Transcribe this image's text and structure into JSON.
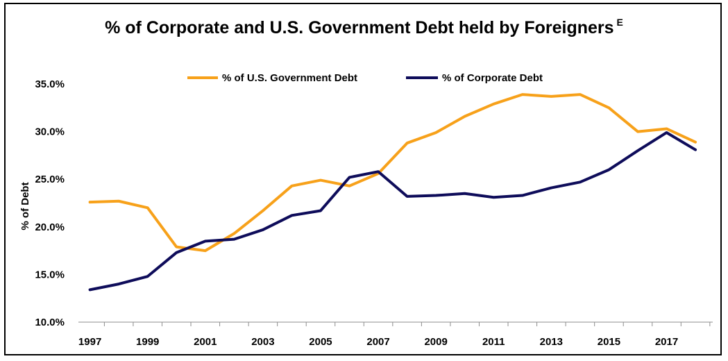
{
  "chart_data": {
    "type": "line",
    "title": "% of Corporate and U.S. Government Debt held by Foreigners",
    "title_superscript": "E",
    "xlabel": "",
    "ylabel": "% of Debt",
    "ylim": [
      10,
      35
    ],
    "xlim": [
      1996.6,
      2018.6
    ],
    "y_ticks": [
      10,
      15,
      20,
      25,
      30,
      35
    ],
    "y_tick_labels": [
      "10.0%",
      "15.0%",
      "20.0%",
      "25.0%",
      "30.0%",
      "35.0%"
    ],
    "x_ticks": [
      1997,
      1999,
      2001,
      2003,
      2005,
      2007,
      2009,
      2011,
      2013,
      2015,
      2017
    ],
    "x_tick_labels": [
      "1997",
      "1999",
      "2001",
      "2003",
      "2005",
      "2007",
      "2009",
      "2011",
      "2013",
      "2015",
      "2017"
    ],
    "legend_position": "top-center",
    "grid": false,
    "series": [
      {
        "name": "% of U.S. Government Debt",
        "color": "#F7A11A",
        "x": [
          1997,
          1998,
          1999,
          2000,
          2001,
          2002,
          2003,
          2004,
          2005,
          2006,
          2007,
          2008,
          2009,
          2010,
          2011,
          2012,
          2013,
          2014,
          2015,
          2016,
          2017,
          2018
        ],
        "values": [
          22.6,
          22.7,
          22.0,
          17.9,
          17.5,
          19.3,
          21.7,
          24.3,
          24.9,
          24.3,
          25.6,
          28.8,
          29.9,
          31.6,
          32.9,
          33.9,
          33.7,
          33.9,
          32.5,
          30.0,
          30.3,
          28.9
        ]
      },
      {
        "name": "% of Corporate Debt",
        "color": "#0E0C5A",
        "x": [
          1997,
          1998,
          1999,
          2000,
          2001,
          2002,
          2003,
          2004,
          2005,
          2006,
          2007,
          2008,
          2009,
          2010,
          2011,
          2012,
          2013,
          2014,
          2015,
          2016,
          2017,
          2018
        ],
        "values": [
          13.4,
          14.0,
          14.8,
          17.3,
          18.5,
          18.7,
          19.7,
          21.2,
          21.7,
          25.2,
          25.8,
          23.2,
          23.3,
          23.5,
          23.1,
          23.3,
          24.1,
          24.7,
          26.0,
          28.0,
          29.9,
          28.1
        ]
      }
    ]
  }
}
